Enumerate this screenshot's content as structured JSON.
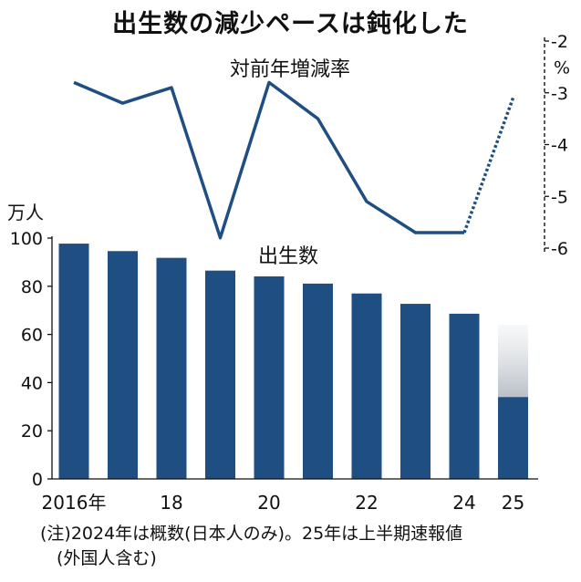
{
  "title": "出生数の減少ペースは鈍化した",
  "chart_data": {
    "type": "bar",
    "categories": [
      "2016年",
      "",
      "18",
      "",
      "20",
      "",
      "22",
      "",
      "24",
      "25"
    ],
    "bar_series": {
      "name": "出生数",
      "values": [
        97.7,
        94.6,
        91.8,
        86.5,
        84.1,
        81.1,
        77.0,
        72.7,
        68.6,
        34.0
      ],
      "estimate_to": [
        null,
        null,
        null,
        null,
        null,
        null,
        null,
        null,
        null,
        64
      ]
    },
    "line_series": {
      "name": "対前年増減率",
      "values": [
        -2.8,
        -3.2,
        -2.9,
        -5.8,
        -2.8,
        -3.5,
        -5.1,
        -5.7,
        -5.7,
        -3.1
      ],
      "dashed_from_index": 8
    },
    "y_left": {
      "unit": "万人",
      "min": 0,
      "max": 100,
      "ticks": [
        "0",
        "20",
        "40",
        "60",
        "80",
        "100"
      ]
    },
    "y_right": {
      "unit": "%",
      "min": -6,
      "max": -2,
      "ticks": [
        "-2",
        "-3",
        "-4",
        "-5",
        "-6"
      ]
    },
    "color": "#1f4e82"
  },
  "notes": [
    "(注)2024年は概数(日本人のみ)。25年は上半期速報値",
    "(外国人含む)"
  ]
}
